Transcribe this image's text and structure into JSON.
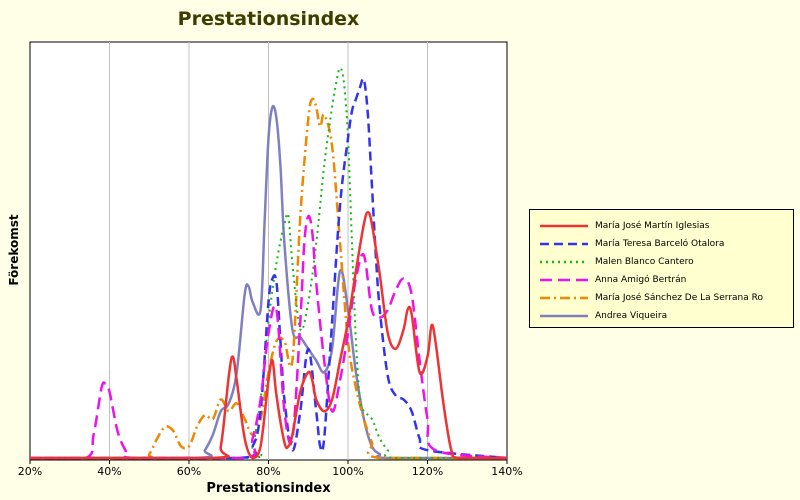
{
  "chart_data": {
    "type": "line",
    "title": "Prestationsindex",
    "xlabel": "Prestationsindex",
    "ylabel": "Förekomst",
    "xlim": [
      20,
      140
    ],
    "x_ticks": [
      "20%",
      "40%",
      "60%",
      "80%",
      "100%",
      "120%",
      "140%"
    ],
    "x_tick_values": [
      20,
      40,
      60,
      80,
      100,
      120,
      140
    ],
    "ylim": [
      0,
      1
    ],
    "y_ticks_shown": false,
    "grid": "vertical",
    "legend_position": "right",
    "series": [
      {
        "name": "María José Martín Iglesias",
        "color": "#ee3333",
        "dash": "solid",
        "x": [
          20,
          66,
          68,
          70,
          71,
          72,
          74,
          76,
          78,
          80,
          81,
          82,
          84,
          85,
          86,
          88,
          90,
          91,
          92,
          94,
          96,
          98,
          100,
          102,
          104,
          105,
          106,
          108,
          110,
          112,
          114,
          115,
          116,
          118,
          120,
          121,
          122,
          124,
          126,
          128,
          140
        ],
        "y": [
          0,
          0,
          0.03,
          0.21,
          0.26,
          0.2,
          0.05,
          0,
          0.03,
          0.2,
          0.25,
          0.16,
          0.04,
          0.03,
          0.06,
          0.17,
          0.22,
          0.2,
          0.15,
          0.12,
          0.15,
          0.25,
          0.35,
          0.48,
          0.6,
          0.63,
          0.6,
          0.47,
          0.32,
          0.28,
          0.33,
          0.38,
          0.37,
          0.22,
          0.26,
          0.34,
          0.3,
          0.14,
          0.02,
          0,
          0
        ]
      },
      {
        "name": "María Teresa Barceló Otalora",
        "color": "#3333ee",
        "dash": "dash",
        "x": [
          20,
          72,
          76,
          78,
          80,
          81,
          82,
          83,
          84,
          86,
          88,
          90,
          92,
          93,
          94,
          96,
          98,
          100,
          101,
          102,
          103,
          104,
          105,
          106,
          107,
          108,
          110,
          112,
          114,
          116,
          118,
          120,
          140
        ],
        "y": [
          0,
          0,
          0.03,
          0.12,
          0.4,
          0.46,
          0.45,
          0.3,
          0.15,
          0.02,
          0.12,
          0.28,
          0.12,
          0.03,
          0.05,
          0.35,
          0.65,
          0.82,
          0.89,
          0.92,
          0.95,
          0.97,
          0.88,
          0.7,
          0.52,
          0.38,
          0.21,
          0.16,
          0.15,
          0.12,
          0.05,
          0.02,
          0
        ]
      },
      {
        "name": "Malen Blanco Cantero",
        "color": "#11bb11",
        "dash": "dot",
        "x": [
          20,
          74,
          76,
          78,
          80,
          82,
          84,
          85,
          86,
          88,
          90,
          92,
          94,
          96,
          97,
          98,
          99,
          100,
          101,
          102,
          103,
          104,
          106,
          108,
          110,
          112,
          140
        ],
        "y": [
          0,
          0,
          0.03,
          0.15,
          0.35,
          0.5,
          0.6,
          0.62,
          0.5,
          0.33,
          0.4,
          0.55,
          0.75,
          0.9,
          0.96,
          1.0,
          0.96,
          0.82,
          0.55,
          0.3,
          0.15,
          0.12,
          0.1,
          0.05,
          0.02,
          0,
          0
        ]
      },
      {
        "name": "Anna Amigó Bertrán",
        "color": "#ee11ee",
        "dash": "longdash",
        "x": [
          20,
          34,
          36,
          38,
          39,
          40,
          42,
          44,
          46,
          74,
          76,
          78,
          80,
          82,
          84,
          86,
          88,
          89,
          90,
          91,
          92,
          94,
          96,
          98,
          100,
          102,
          104,
          106,
          108,
          110,
          112,
          114,
          116,
          118,
          120,
          122,
          140
        ],
        "y": [
          0,
          0,
          0.06,
          0.18,
          0.19,
          0.17,
          0.07,
          0.02,
          0,
          0,
          0.05,
          0.15,
          0.32,
          0.38,
          0.12,
          0.05,
          0.35,
          0.55,
          0.62,
          0.58,
          0.45,
          0.25,
          0.12,
          0.2,
          0.32,
          0.46,
          0.52,
          0.38,
          0.36,
          0.38,
          0.43,
          0.46,
          0.42,
          0.25,
          0.1,
          0.02,
          0
        ]
      },
      {
        "name": "María José Sánchez De La Serrana Ro",
        "color": "#ee8800",
        "dash": "dashdot",
        "x": [
          20,
          48,
          50,
          52,
          54,
          56,
          58,
          60,
          62,
          64,
          66,
          68,
          70,
          72,
          74,
          76,
          78,
          80,
          82,
          84,
          86,
          88,
          90,
          91,
          92,
          93,
          94,
          96,
          98,
          100,
          102,
          104,
          106,
          108,
          140
        ],
        "y": [
          0,
          0,
          0.01,
          0.05,
          0.08,
          0.07,
          0.03,
          0.03,
          0.08,
          0.11,
          0.1,
          0.15,
          0.12,
          0.14,
          0.1,
          0.06,
          0.1,
          0.22,
          0.3,
          0.3,
          0.25,
          0.62,
          0.87,
          0.92,
          0.9,
          0.85,
          0.88,
          0.8,
          0.55,
          0.3,
          0.18,
          0.1,
          0.04,
          0,
          0
        ]
      },
      {
        "name": "Andrea Viqueira",
        "color": "#8080c0",
        "dash": "solid",
        "x": [
          20,
          62,
          64,
          66,
          68,
          70,
          72,
          74,
          75,
          76,
          78,
          79,
          80,
          81,
          82,
          83,
          84,
          86,
          88,
          90,
          92,
          94,
          96,
          98,
          100,
          102,
          104,
          106,
          108,
          110,
          140
        ],
        "y": [
          0,
          0,
          0.02,
          0.06,
          0.12,
          0.14,
          0.22,
          0.42,
          0.44,
          0.4,
          0.38,
          0.6,
          0.82,
          0.9,
          0.87,
          0.75,
          0.55,
          0.33,
          0.31,
          0.28,
          0.25,
          0.22,
          0.28,
          0.48,
          0.38,
          0.22,
          0.1,
          0.03,
          0.01,
          0,
          0
        ]
      }
    ]
  }
}
